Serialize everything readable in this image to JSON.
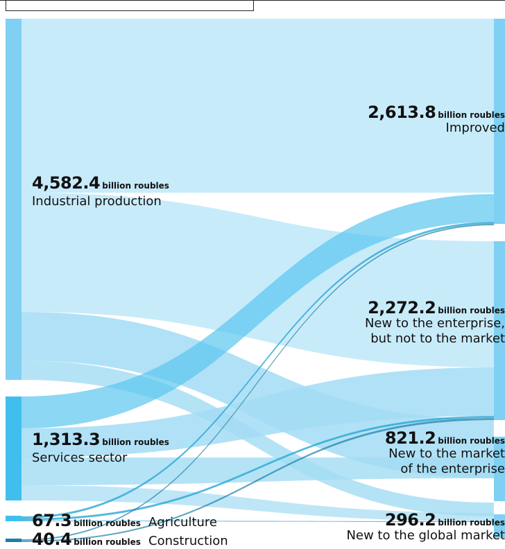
{
  "colors": {
    "flow_main": "#c8ebfa",
    "flow_mid": "#a3dcf4",
    "flow_dark": "#5ac6ef",
    "flow_accent": "#2aa7d6",
    "bar_light": "#7fd0f2",
    "bar_medium": "#40bfee",
    "bar_dark": "#1c7fa7"
  },
  "sankey": {
    "unit": "billion roubles",
    "sources": [
      {
        "key": "industrial",
        "name": "Industrial production",
        "value": "4,582.4"
      },
      {
        "key": "services",
        "name": "Services sector",
        "value": "1,313.3"
      },
      {
        "key": "agriculture",
        "name": "Agriculture",
        "value": "67.3"
      },
      {
        "key": "construction",
        "name": "Construction",
        "value": "40.4"
      }
    ],
    "targets": [
      {
        "key": "improved",
        "name_lines": [
          "Improved"
        ],
        "value": "2,613.8"
      },
      {
        "key": "new_enterprise",
        "name_lines": [
          "New to the enterprise,",
          "but not to the market"
        ],
        "value": "2,272.2"
      },
      {
        "key": "new_market",
        "name_lines": [
          "New to the market",
          "of the enterprise"
        ],
        "value": "821.2"
      },
      {
        "key": "new_global",
        "name_lines": [
          "New to the global market"
        ],
        "value": "296.2"
      }
    ]
  }
}
